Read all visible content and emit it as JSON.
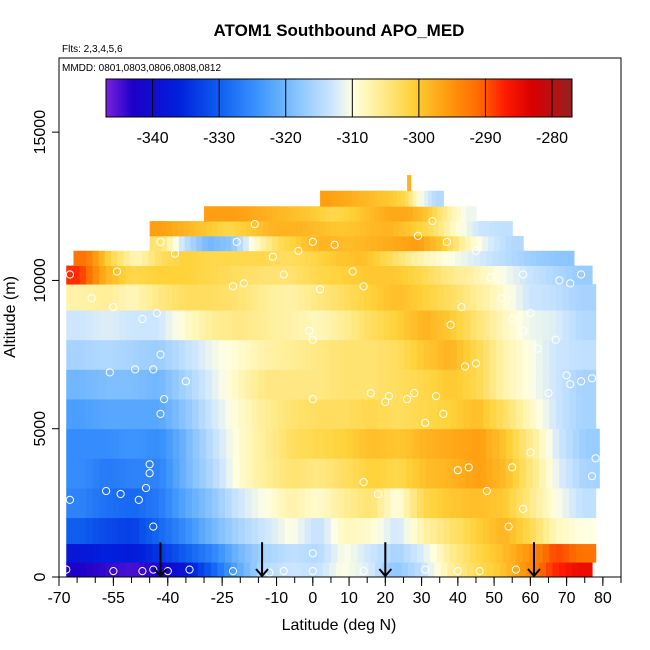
{
  "chart_data": {
    "type": "heatmap",
    "title": "ATOM1 Southbound APO_MED",
    "subtitle_flights": "Flts: 2,3,4,5,6",
    "subtitle_dates": "MMDD: 0801,0803,0806,0808,0812",
    "xlabel": "Latitude (deg N)",
    "ylabel": "Altitude (m)",
    "xlim": [
      -70,
      85
    ],
    "ylim": [
      0,
      17500
    ],
    "x_ticks": [
      -70,
      -55,
      -40,
      -25,
      -10,
      0,
      10,
      20,
      30,
      40,
      50,
      60,
      70,
      80
    ],
    "y_ticks": [
      0,
      5000,
      10000,
      15000
    ],
    "colorbar": {
      "range": [
        -347,
        -277
      ],
      "ticks": [
        -340,
        -330,
        -320,
        -310,
        -300,
        -290,
        -280
      ],
      "stops": [
        {
          "v": -347,
          "c": "#7a22e0"
        },
        {
          "v": -343,
          "c": "#1c00c8"
        },
        {
          "v": -336,
          "c": "#0020dd"
        },
        {
          "v": -330,
          "c": "#0f5ef0"
        },
        {
          "v": -324,
          "c": "#3d96ff"
        },
        {
          "v": -318,
          "c": "#8cc6ff"
        },
        {
          "v": -313,
          "c": "#cde6ff"
        },
        {
          "v": -310,
          "c": "#ffffe2"
        },
        {
          "v": -306,
          "c": "#ffee96"
        },
        {
          "v": -301,
          "c": "#ffd23a"
        },
        {
          "v": -296,
          "c": "#ff9e10"
        },
        {
          "v": -291,
          "c": "#ff6a00"
        },
        {
          "v": -287,
          "c": "#ff1a00"
        },
        {
          "v": -283,
          "c": "#d80000"
        },
        {
          "v": -277,
          "c": "#962020"
        }
      ]
    },
    "field": [
      {
        "alt": 250,
        "lat_min": -68,
        "lat_max": 77,
        "values": [
          -343,
          -344,
          -345,
          -343,
          -338,
          -330,
          -322,
          -315,
          -313,
          -314,
          -310,
          -312,
          -318,
          -314,
          -307,
          -303,
          -300,
          -295,
          -288,
          -285
        ]
      },
      {
        "alt": 750,
        "lat_min": -68,
        "lat_max": 78,
        "values": [
          -338,
          -336,
          -337,
          -334,
          -330,
          -326,
          -320,
          -316,
          -314,
          -315,
          -310,
          -313,
          -316,
          -312,
          -306,
          -302,
          -299,
          -295,
          -289,
          -292
        ]
      },
      {
        "alt": 1500,
        "lat_min": -68,
        "lat_max": 78,
        "values": [
          -330,
          -332,
          -333,
          -329,
          -325,
          -320,
          -316,
          -313,
          -310,
          -314,
          -308,
          -309,
          -313,
          -307,
          -304,
          -301,
          -298,
          -302,
          -308,
          -310
        ]
      },
      {
        "alt": 2500,
        "lat_min": -68,
        "lat_max": 78,
        "values": [
          -326,
          -328,
          -329,
          -327,
          -322,
          -318,
          -313,
          -310,
          -307,
          -309,
          -306,
          -304,
          -310,
          -302,
          -300,
          -299,
          -300,
          -305,
          -310,
          -314
        ]
      },
      {
        "alt": 3500,
        "lat_min": -68,
        "lat_max": 79,
        "values": [
          -325,
          -327,
          -326,
          -326,
          -320,
          -315,
          -309,
          -306,
          -304,
          -305,
          -303,
          -301,
          -302,
          -299,
          -298,
          -296,
          -299,
          -305,
          -312,
          -316
        ]
      },
      {
        "alt": 4500,
        "lat_min": -68,
        "lat_max": 79,
        "values": [
          -325,
          -325,
          -324,
          -325,
          -320,
          -314,
          -309,
          -306,
          -303,
          -302,
          -301,
          -299,
          -300,
          -298,
          -297,
          -296,
          -300,
          -306,
          -313,
          -317
        ]
      },
      {
        "alt": 5500,
        "lat_min": -68,
        "lat_max": 78,
        "values": [
          -323,
          -322,
          -322,
          -322,
          -318,
          -313,
          -309,
          -306,
          -304,
          -303,
          -303,
          -302,
          -303,
          -302,
          -301,
          -299,
          -303,
          -308,
          -313,
          -316
        ]
      },
      {
        "alt": 6500,
        "lat_min": -68,
        "lat_max": 78,
        "values": [
          -320,
          -319,
          -319,
          -320,
          -316,
          -312,
          -308,
          -305,
          -305,
          -305,
          -304,
          -304,
          -303,
          -302,
          -300,
          -302,
          -307,
          -310,
          -313,
          -316
        ]
      },
      {
        "alt": 7500,
        "lat_min": -68,
        "lat_max": 78,
        "values": [
          -316,
          -315,
          -316,
          -317,
          -314,
          -311,
          -309,
          -307,
          -306,
          -305,
          -304,
          -304,
          -303,
          -300,
          -298,
          -302,
          -307,
          -310,
          -313,
          -314
        ]
      },
      {
        "alt": 8500,
        "lat_min": -68,
        "lat_max": 78,
        "values": [
          -313,
          -312,
          -313,
          -313,
          -309,
          -306,
          -305,
          -306,
          -307,
          -308,
          -306,
          -303,
          -301,
          -298,
          -300,
          -304,
          -308,
          -311,
          -312,
          -315
        ]
      },
      {
        "alt": 9500,
        "lat_min": -68,
        "lat_max": 78,
        "values": [
          -307,
          -306,
          -308,
          -305,
          -303,
          -303,
          -304,
          -306,
          -307,
          -305,
          -303,
          -301,
          -299,
          -301,
          -303,
          -306,
          -309,
          -313,
          -314,
          -316
        ]
      },
      {
        "alt": 10250,
        "lat_min": -68,
        "lat_max": 77,
        "values": [
          -288,
          -298,
          -302,
          -301,
          -301,
          -302,
          -303,
          -304,
          -304,
          -302,
          -301,
          -300,
          -300,
          -302,
          -305,
          -307,
          -310,
          -313,
          -315,
          -317
        ]
      },
      {
        "alt": 10750,
        "lat_min": -66,
        "lat_max": 72,
        "values": [
          -292,
          -302,
          -308,
          -303,
          -301,
          -302,
          -302,
          -302,
          -303,
          -302,
          -300,
          -299,
          -302,
          -306,
          -309,
          -311,
          -313,
          -315,
          -317,
          -318
        ]
      },
      {
        "alt": 11250,
        "lat_min": -45,
        "lat_max": 58,
        "values": [
          -304,
          -314,
          -320,
          -318,
          -309,
          -303,
          -300,
          -298,
          -299,
          -298,
          -297,
          -296,
          -300,
          -307,
          -312,
          -315
        ]
      },
      {
        "alt": 11750,
        "lat_min": -45,
        "lat_max": 55,
        "values": [
          -296,
          -298,
          -300,
          -302,
          -300,
          -298,
          -298,
          -299,
          -300,
          -299,
          -298,
          -300,
          -303,
          -309,
          -313,
          -314
        ]
      },
      {
        "alt": 12250,
        "lat_min": -30,
        "lat_max": 45,
        "values": [
          -296,
          -296,
          -297,
          -298,
          -299,
          -300,
          -302,
          -301,
          -299,
          -297,
          -297,
          -300,
          -306,
          -311
        ]
      },
      {
        "alt": 12750,
        "lat_min": 2,
        "lat_max": 36,
        "values": [
          -296,
          -297,
          -298,
          -299,
          -300,
          -302,
          -310,
          -315
        ]
      },
      {
        "alt": 13300,
        "lat_min": 26,
        "lat_max": 27,
        "values": [
          -298
        ]
      }
    ],
    "observations": [
      [
        -68,
        250
      ],
      [
        -55,
        200
      ],
      [
        -47,
        200
      ],
      [
        -44,
        250
      ],
      [
        -40,
        200
      ],
      [
        -34,
        250
      ],
      [
        -22,
        200
      ],
      [
        -12,
        150
      ],
      [
        -8,
        200
      ],
      [
        0,
        200
      ],
      [
        0,
        800
      ],
      [
        14,
        200
      ],
      [
        31,
        250
      ],
      [
        40,
        200
      ],
      [
        46,
        200
      ],
      [
        56,
        250
      ],
      [
        -67,
        2600
      ],
      [
        -57,
        2900
      ],
      [
        -53,
        2800
      ],
      [
        -48,
        2600
      ],
      [
        -46,
        3000
      ],
      [
        -45,
        3500
      ],
      [
        -45,
        3800
      ],
      [
        -44,
        1700
      ],
      [
        -42,
        5500
      ],
      [
        -41,
        6000
      ],
      [
        -44,
        7000
      ],
      [
        -42,
        7500
      ],
      [
        -35,
        6600
      ],
      [
        -43,
        8900
      ],
      [
        -47,
        8700
      ],
      [
        -49,
        7000
      ],
      [
        -56,
        6900
      ],
      [
        -61,
        9400
      ],
      [
        -55,
        9100
      ],
      [
        -67,
        10200
      ],
      [
        -54,
        10300
      ],
      [
        -42,
        11300
      ],
      [
        -38,
        10900
      ],
      [
        -21,
        11300
      ],
      [
        -16,
        11900
      ],
      [
        -11,
        10800
      ],
      [
        -4,
        11000
      ],
      [
        0,
        11300
      ],
      [
        6,
        11200
      ],
      [
        11,
        10300
      ],
      [
        14,
        9800
      ],
      [
        2,
        9700
      ],
      [
        0,
        8000
      ],
      [
        0,
        6000
      ],
      [
        14,
        3200
      ],
      [
        16,
        6200
      ],
      [
        21,
        6100
      ],
      [
        28,
        6200
      ],
      [
        26,
        6000
      ],
      [
        20,
        5900
      ],
      [
        34,
        6100
      ],
      [
        18,
        2800
      ],
      [
        -19,
        9900
      ],
      [
        -22,
        9800
      ],
      [
        -8,
        10200
      ],
      [
        -1,
        8300
      ],
      [
        29,
        11500
      ],
      [
        33,
        12000
      ],
      [
        37,
        11300
      ],
      [
        38,
        8500
      ],
      [
        41,
        9100
      ],
      [
        45,
        11000
      ],
      [
        49,
        10100
      ],
      [
        52,
        9400
      ],
      [
        55,
        8700
      ],
      [
        58,
        8300
      ],
      [
        62,
        7700
      ],
      [
        67,
        8000
      ],
      [
        70,
        6800
      ],
      [
        71,
        9900
      ],
      [
        71,
        6500
      ],
      [
        74,
        6600
      ],
      [
        77,
        6700
      ],
      [
        77,
        3400
      ],
      [
        78,
        4000
      ],
      [
        55,
        3700
      ],
      [
        48,
        2900
      ],
      [
        43,
        3700
      ],
      [
        40,
        3600
      ],
      [
        36,
        5500
      ],
      [
        31,
        5200
      ],
      [
        42,
        7100
      ],
      [
        45,
        7200
      ],
      [
        54,
        1700
      ],
      [
        58,
        2300
      ],
      [
        60,
        4200
      ],
      [
        65,
        6200
      ],
      [
        58,
        10200
      ],
      [
        60,
        8900
      ],
      [
        68,
        10000
      ],
      [
        74,
        10200
      ]
    ],
    "flight_markers": [
      {
        "lat": -42,
        "alt": 700
      },
      {
        "lat": -14,
        "alt": 700
      },
      {
        "lat": 20,
        "alt": 700
      },
      {
        "lat": 61,
        "alt": 700
      }
    ]
  }
}
